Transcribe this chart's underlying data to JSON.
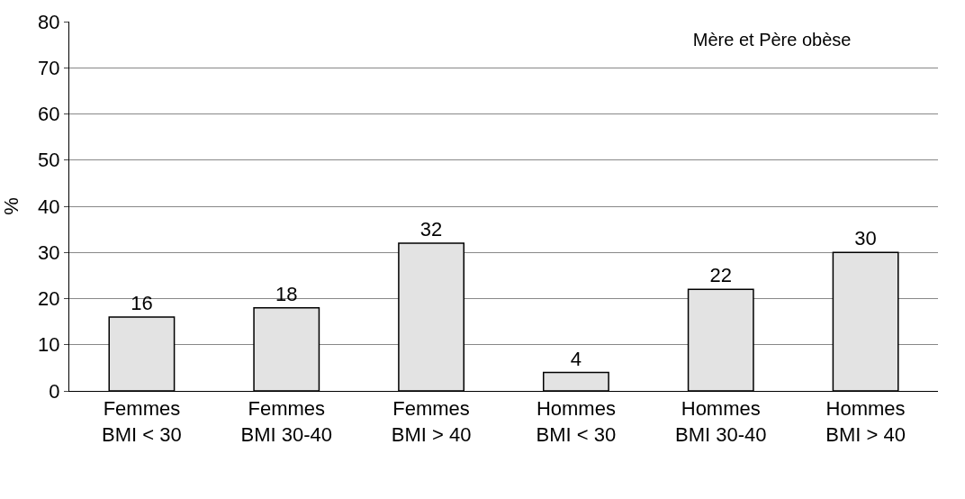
{
  "chart_data": {
    "type": "bar",
    "title": "Mère et Père obèse",
    "ylabel": "%",
    "categories": [
      "Femmes\nBMI < 30",
      "Femmes\nBMI 30-40",
      "Femmes\nBMI > 40",
      "Hommes\nBMI < 30",
      "Hommes\nBMI 30-40",
      "Hommes\nBMI > 40"
    ],
    "values": [
      16,
      18,
      32,
      4,
      22,
      30
    ],
    "color": "#e3e3e3",
    "ylim": [
      0,
      80
    ],
    "yticks": [
      0,
      10,
      20,
      30,
      40,
      50,
      60,
      70,
      80
    ],
    "grid": "y",
    "data_labels": true
  }
}
